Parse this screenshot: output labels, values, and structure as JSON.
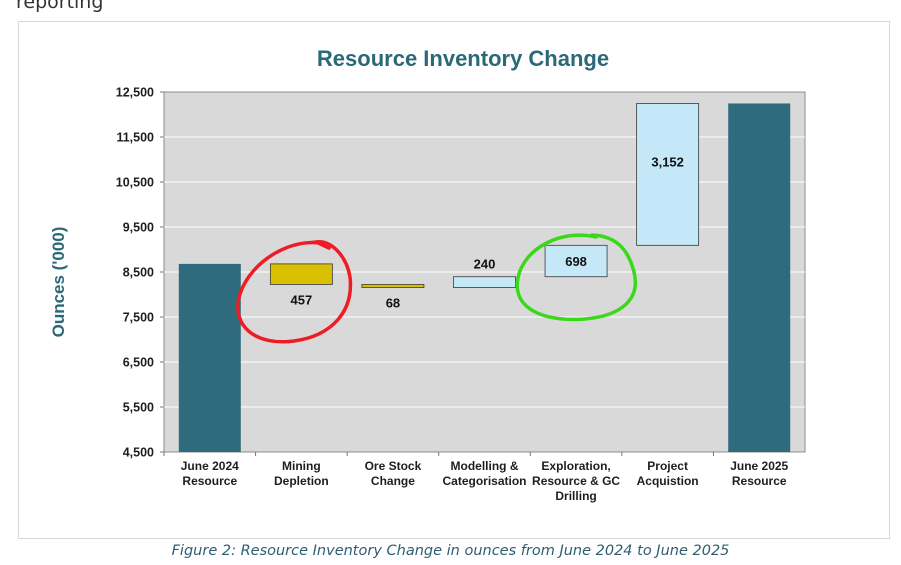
{
  "page": {
    "top_clipped_text": "reporting",
    "caption": "Figure 2:  Resource Inventory Change in ounces from June 2024 to June 2025"
  },
  "colors": {
    "total_bar": "#2e6b7c",
    "decrease_bar": "#d9c000",
    "increase_bar": "#c4e8f7",
    "plot_bg": "#d9d9d9",
    "title": "#2b6979",
    "red_circle": "#ee1c25",
    "green_circle": "#39d91a"
  },
  "chart_data": {
    "type": "waterfall",
    "title": "Resource Inventory Change",
    "ylabel": "Ounces ('000)",
    "xlabel": "",
    "ylim": [
      4500,
      12500
    ],
    "yticks": [
      "4,500",
      "5,500",
      "6,500",
      "7,500",
      "8,500",
      "9,500",
      "10,500",
      "11,500",
      "12,500"
    ],
    "ytick_values": [
      4500,
      5500,
      6500,
      7500,
      8500,
      9500,
      10500,
      11500,
      12500
    ],
    "grid": true,
    "categories": [
      [
        "June 2024",
        "Resource"
      ],
      [
        "Mining",
        "Depletion"
      ],
      [
        "Ore Stock",
        "Change"
      ],
      [
        "Modelling &",
        "Categorisation"
      ],
      [
        "Exploration,",
        "Resource & GC",
        "Drilling"
      ],
      [
        "Project",
        "Acquistion"
      ],
      [
        "June 2025",
        "Resource"
      ]
    ],
    "steps": [
      {
        "kind": "total",
        "start": 4500,
        "end": 8680,
        "label": ""
      },
      {
        "kind": "decrease",
        "start": 8680,
        "end": 8223,
        "label": "457"
      },
      {
        "kind": "decrease",
        "start": 8223,
        "end": 8155,
        "label": "68"
      },
      {
        "kind": "increase",
        "start": 8155,
        "end": 8395,
        "label": "240"
      },
      {
        "kind": "increase",
        "start": 8395,
        "end": 9093,
        "label": "698"
      },
      {
        "kind": "increase",
        "start": 9093,
        "end": 12245,
        "label": "3,152"
      },
      {
        "kind": "total",
        "start": 4500,
        "end": 12245,
        "label": ""
      }
    ],
    "annotations": [
      {
        "type": "hand-drawn-circle",
        "color": "red",
        "around": "Mining Depletion"
      },
      {
        "type": "hand-drawn-circle",
        "color": "green",
        "around": "Exploration, Resource & GC Drilling"
      }
    ]
  }
}
